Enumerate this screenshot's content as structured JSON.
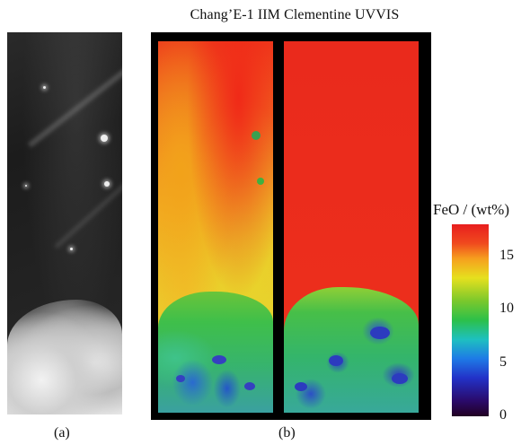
{
  "figure": {
    "title": "Chang’E-1 IIM Clementine UVVIS",
    "panel_a_label": "(a)",
    "panel_b_label": "(b)"
  },
  "colorbar": {
    "label": "FeO / (wt%)",
    "ticks": [
      "15",
      "10",
      "5",
      "0"
    ],
    "tick_values": [
      15,
      10,
      5,
      0
    ],
    "range": [
      0,
      18
    ],
    "colors": {
      "max": "#e81e1e",
      "high": "#f6a01e",
      "mid_high": "#e6e01e",
      "mid": "#2cc04a",
      "low_mid": "#1ec0c0",
      "low": "#2232c8",
      "min": "#220022"
    }
  }
}
